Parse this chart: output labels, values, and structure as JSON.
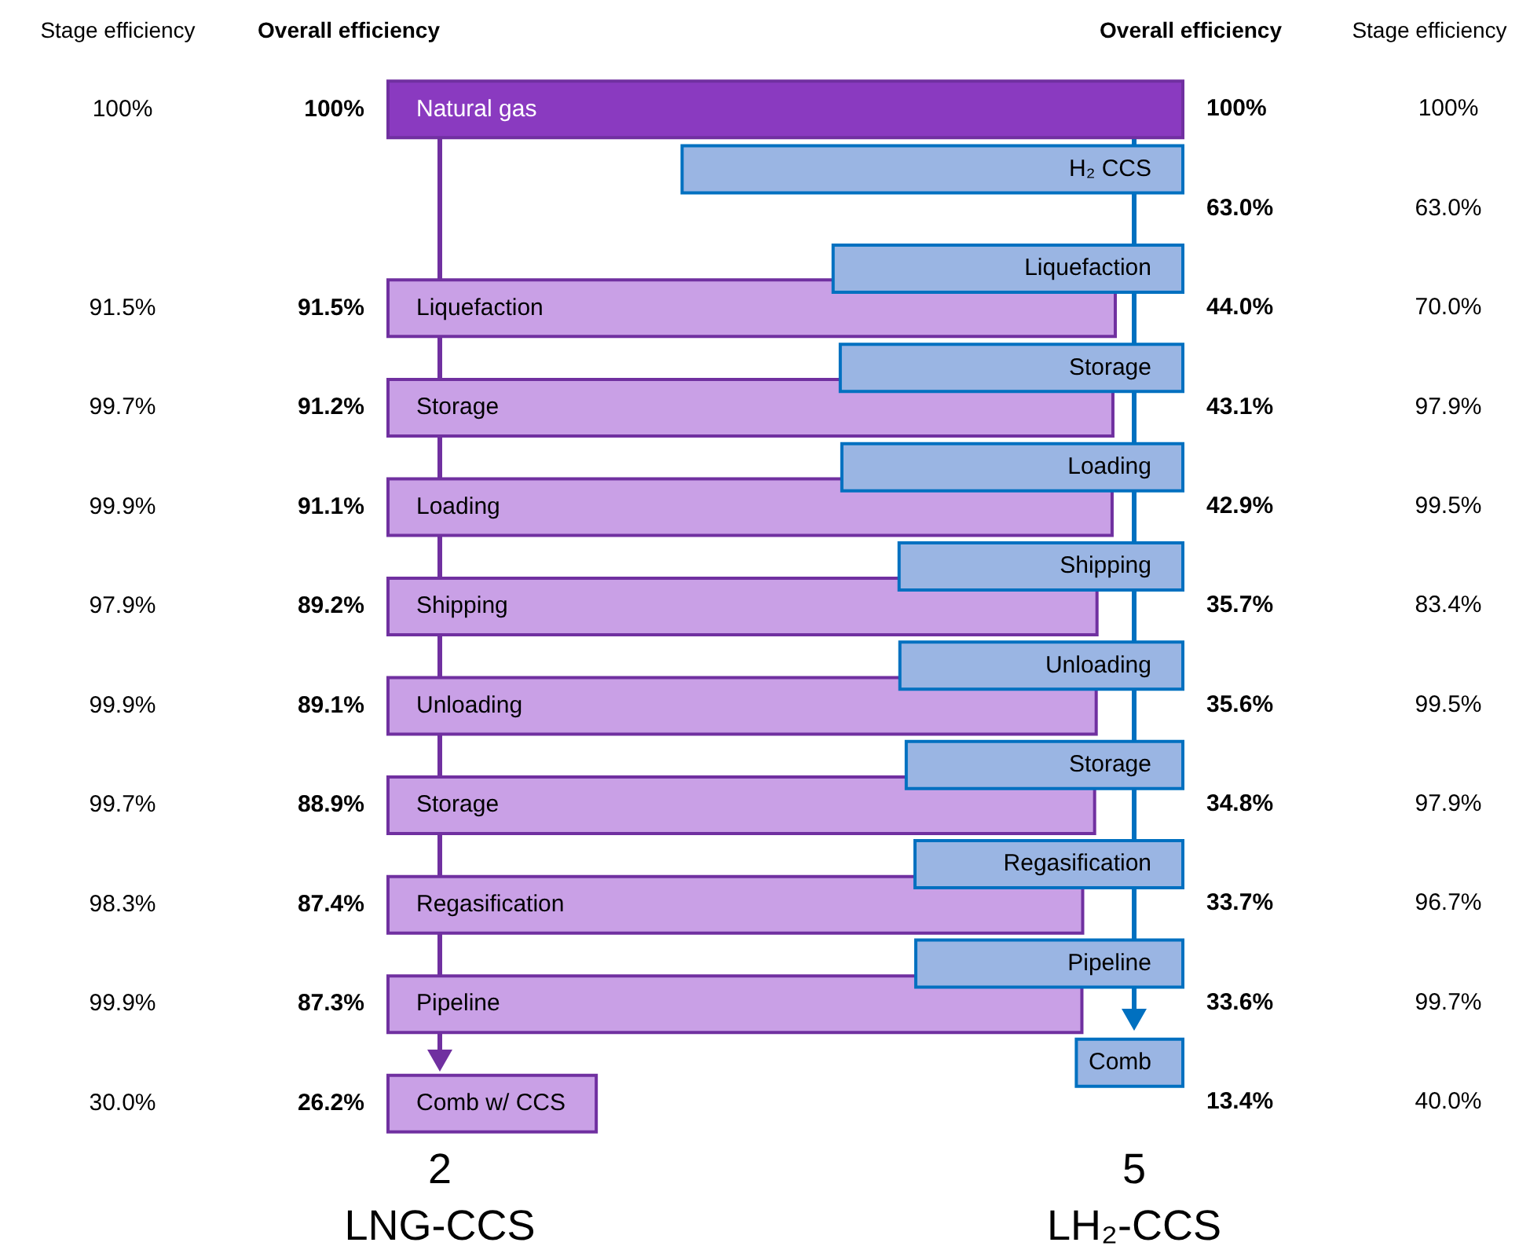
{
  "chart_data": [
    {
      "type": "bar",
      "orientation": "horizontal",
      "xlabel": "2\nLNG-CCS",
      "categories": [
        "Natural gas",
        null,
        "Liquefaction",
        "Storage",
        "Loading",
        "Shipping",
        "Unloading",
        "Storage",
        "Regasification",
        "Pipeline",
        "Comb w/ CCS"
      ],
      "values": [
        100,
        null,
        91.5,
        91.2,
        91.1,
        89.2,
        89.1,
        88.9,
        87.4,
        87.3,
        26.2
      ],
      "value_labels": [
        "100%",
        null,
        "91.5%",
        "91.2%",
        "91.1%",
        "89.2%",
        "89.1%",
        "88.9%",
        "87.4%",
        "87.3%",
        "26.2%"
      ],
      "colors": [
        "#8a3ac0",
        "#c9a0e6",
        "#c9a0e6",
        "#c9a0e6",
        "#c9a0e6",
        "#c9a0e6",
        "#c9a0e6",
        "#c9a0e6",
        "#c9a0e6",
        "#c9a0e6",
        "#c9a0e6"
      ],
      "xlim": [
        0,
        100
      ],
      "tick_labels": false,
      "legend": false,
      "annotations": [
        "Stage efficiency",
        "Overall efficiency",
        "100%",
        "91.5%",
        "99.7%",
        "99.9%",
        "97.9%",
        "99.9%",
        "99.7%",
        "98.3%",
        "99.9%",
        "30.0%"
      ]
    },
    {
      "type": "bar",
      "orientation": "horizontal",
      "xlabel": "5\nLH₂-CCS",
      "categories": [
        null,
        "H₂ CCS",
        "Liquefaction",
        "Storage",
        "Loading",
        "Shipping",
        "Unloading",
        "Storage",
        "Regasification",
        "Pipeline",
        "Comb"
      ],
      "values": [
        null,
        63.0,
        44.0,
        43.1,
        42.9,
        35.7,
        35.6,
        34.8,
        33.7,
        33.6,
        13.4
      ],
      "value_labels": [
        "100%",
        "63.0%",
        "44.0%",
        "43.1%",
        "42.9%",
        "35.7%",
        "35.6%",
        "34.8%",
        "33.7%",
        "33.6%",
        "13.4%"
      ],
      "colors": [
        "#9ab5e3",
        "#9ab5e3",
        "#9ab5e3",
        "#9ab5e3",
        "#9ab5e3",
        "#9ab5e3",
        "#9ab5e3",
        "#9ab5e3",
        "#9ab5e3",
        "#9ab5e3",
        "#9ab5e3"
      ],
      "tick_labels": false,
      "legend": false,
      "annotations": [
        "Overall efficiency",
        "Stage efficiency",
        "100%",
        "63.0%",
        "70.0%",
        "97.9%",
        "99.5%",
        "83.4%",
        "99.5%",
        "97.9%",
        "96.7%",
        "99.7%",
        "40.0%"
      ]
    }
  ]
}
